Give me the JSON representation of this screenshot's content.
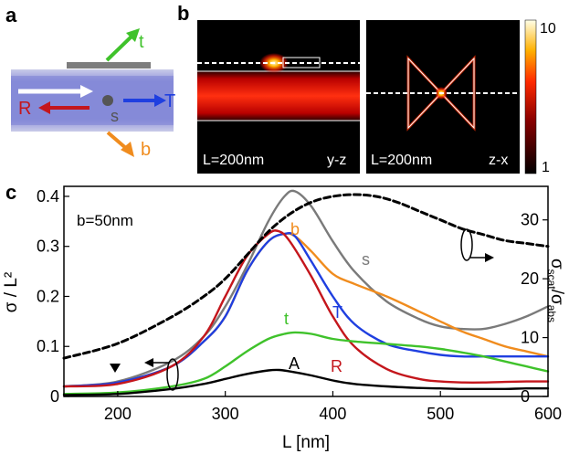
{
  "panel_a": {
    "letter": "a",
    "labels": {
      "t": "t",
      "R": "R",
      "T": "T",
      "s": "s",
      "b": "b"
    },
    "colors": {
      "t": "#3fc22b",
      "R": "#c4161c",
      "T": "#1f3fe0",
      "b": "#f08c1e",
      "s": "#555555"
    }
  },
  "panel_b": {
    "letter": "b",
    "maps": [
      {
        "size_label": "L=200nm",
        "plane_label": "y-z"
      },
      {
        "size_label": "L=200nm",
        "plane_label": "z-x"
      }
    ],
    "colorbar": {
      "max_label": "10",
      "min_label": "1",
      "scale": "log"
    }
  },
  "panel_c": {
    "letter": "c",
    "annotation": "b=50nm",
    "curve_labels": {
      "s": "s",
      "b": "b",
      "T": "T",
      "t": "t",
      "R": "R",
      "A": "A"
    }
  },
  "chart_data": {
    "type": "line",
    "xlabel": "L [nm]",
    "ylabel_left": "σ / L²",
    "ylabel_right_main": "σ",
    "ylabel_right_sub1": "scat",
    "ylabel_right_sep": "/σ",
    "ylabel_right_sub2": "abs",
    "xlim": [
      150,
      600
    ],
    "ylim": [
      0,
      0.42
    ],
    "y2lim": [
      0,
      35.7
    ],
    "xticks": [
      "200",
      "300",
      "400",
      "500",
      "600"
    ],
    "xtick_values": [
      200,
      300,
      400,
      500,
      600
    ],
    "yticks": [
      "0",
      "0.1",
      "0.2",
      "0.3",
      "0.4"
    ],
    "ytick_values": [
      0,
      0.1,
      0.2,
      0.3,
      0.4
    ],
    "y2ticks": [
      "0",
      "10",
      "20",
      "30"
    ],
    "y2tick_values": [
      0,
      10,
      20,
      30
    ],
    "grid": false,
    "series": [
      {
        "name": "s",
        "axis": "left",
        "color": "#7a7a7a",
        "x": [
          150,
          200,
          250,
          280,
          300,
          320,
          340,
          355,
          365,
          380,
          400,
          420,
          450,
          480,
          500,
          520,
          540,
          560,
          580,
          600
        ],
        "y": [
          0.02,
          0.03,
          0.07,
          0.12,
          0.18,
          0.26,
          0.35,
          0.4,
          0.41,
          0.38,
          0.31,
          0.25,
          0.19,
          0.155,
          0.14,
          0.135,
          0.135,
          0.145,
          0.16,
          0.18
        ]
      },
      {
        "name": "b",
        "axis": "left",
        "color": "#f08c1e",
        "x": [
          150,
          200,
          250,
          280,
          300,
          320,
          340,
          355,
          365,
          380,
          400,
          420,
          450,
          480,
          500,
          520,
          540,
          560,
          580,
          600
        ],
        "y": [
          0.02,
          0.028,
          0.06,
          0.11,
          0.16,
          0.25,
          0.31,
          0.325,
          0.32,
          0.29,
          0.245,
          0.225,
          0.2,
          0.17,
          0.15,
          0.13,
          0.115,
          0.1,
          0.09,
          0.08
        ]
      },
      {
        "name": "T",
        "axis": "left",
        "color": "#1f3fe0",
        "x": [
          150,
          200,
          250,
          280,
          300,
          320,
          340,
          355,
          365,
          380,
          400,
          420,
          450,
          480,
          500,
          520,
          540,
          560,
          580,
          600
        ],
        "y": [
          0.02,
          0.028,
          0.06,
          0.11,
          0.16,
          0.25,
          0.31,
          0.325,
          0.32,
          0.27,
          0.2,
          0.145,
          0.105,
          0.09,
          0.083,
          0.08,
          0.08,
          0.08,
          0.08,
          0.08
        ]
      },
      {
        "name": "R",
        "axis": "left",
        "color": "#c4161c",
        "x": [
          150,
          200,
          250,
          280,
          300,
          320,
          340,
          350,
          360,
          380,
          400,
          420,
          450,
          480,
          500,
          520,
          540,
          560,
          580,
          600
        ],
        "y": [
          0.02,
          0.025,
          0.06,
          0.12,
          0.2,
          0.28,
          0.325,
          0.33,
          0.31,
          0.24,
          0.16,
          0.1,
          0.055,
          0.035,
          0.03,
          0.028,
          0.028,
          0.029,
          0.03,
          0.03
        ]
      },
      {
        "name": "t",
        "axis": "left",
        "color": "#3fc22b",
        "x": [
          150,
          200,
          250,
          280,
          300,
          320,
          340,
          355,
          365,
          380,
          400,
          420,
          450,
          480,
          500,
          520,
          540,
          560,
          580,
          600
        ],
        "y": [
          0.005,
          0.008,
          0.02,
          0.035,
          0.06,
          0.09,
          0.115,
          0.125,
          0.128,
          0.125,
          0.115,
          0.11,
          0.105,
          0.1,
          0.095,
          0.088,
          0.08,
          0.07,
          0.06,
          0.05
        ]
      },
      {
        "name": "A",
        "axis": "left",
        "color": "#000000",
        "x": [
          150,
          200,
          250,
          280,
          300,
          320,
          340,
          350,
          360,
          380,
          400,
          420,
          450,
          480,
          500,
          520,
          540,
          560,
          580,
          600
        ],
        "y": [
          0.003,
          0.005,
          0.015,
          0.025,
          0.035,
          0.045,
          0.052,
          0.053,
          0.05,
          0.042,
          0.032,
          0.025,
          0.02,
          0.017,
          0.016,
          0.015,
          0.015,
          0.015,
          0.016,
          0.016
        ]
      },
      {
        "name": "",
        "axis": "right",
        "color": "#000000",
        "dashed": true,
        "x": [
          150,
          200,
          250,
          280,
          300,
          320,
          340,
          360,
          380,
          400,
          420,
          440,
          460,
          480,
          500,
          520,
          540,
          560,
          580,
          600
        ],
        "y": [
          6.5,
          9,
          13.5,
          17,
          20,
          24,
          28,
          31,
          33,
          34,
          34.3,
          34,
          33,
          31.5,
          30,
          28.5,
          27.5,
          26.5,
          26,
          25.5
        ]
      }
    ]
  }
}
